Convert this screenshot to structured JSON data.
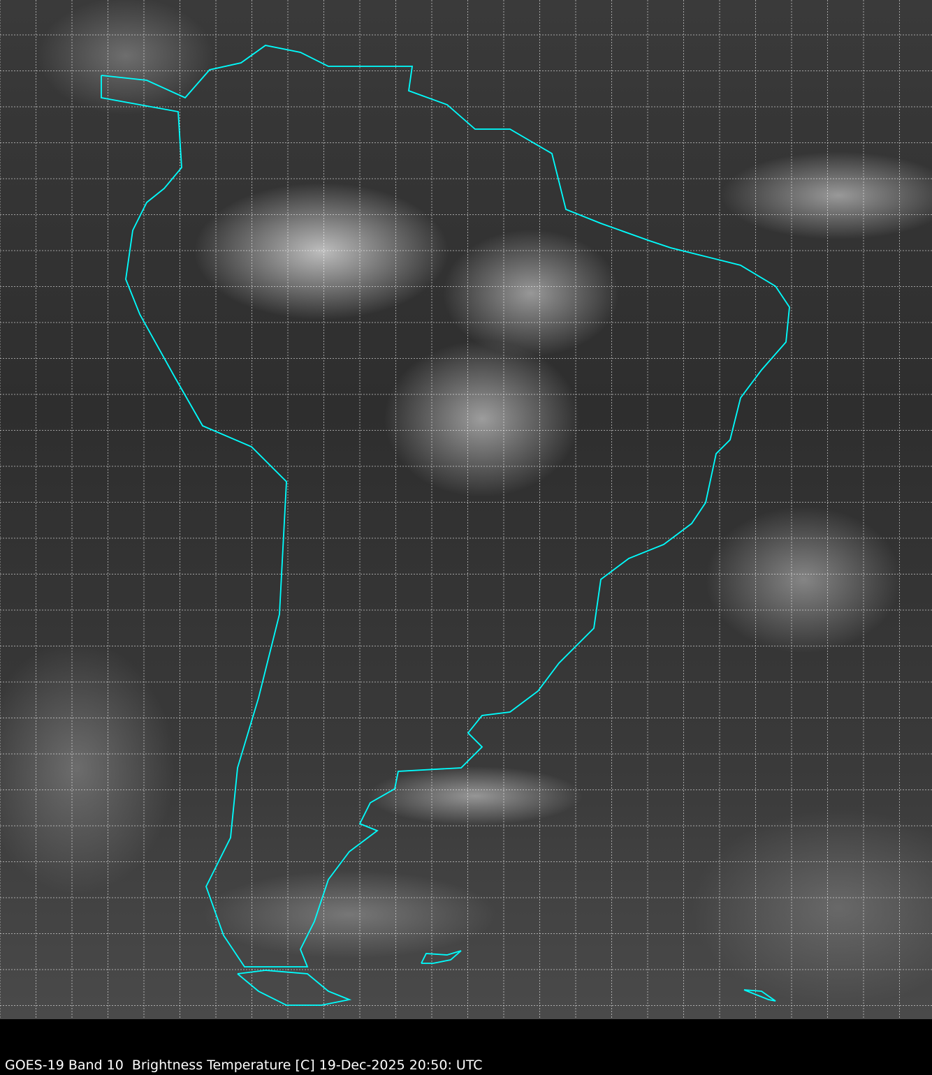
{
  "caption": "GOES-19 Band 10  Brightness Temperature [C] 19-Dec-2025 20:50: UTC",
  "colors": {
    "coastline": "#00ffff",
    "grid": "#ffffff",
    "background": "#000000"
  },
  "projection_grid": "dashed lat/lon grid"
}
